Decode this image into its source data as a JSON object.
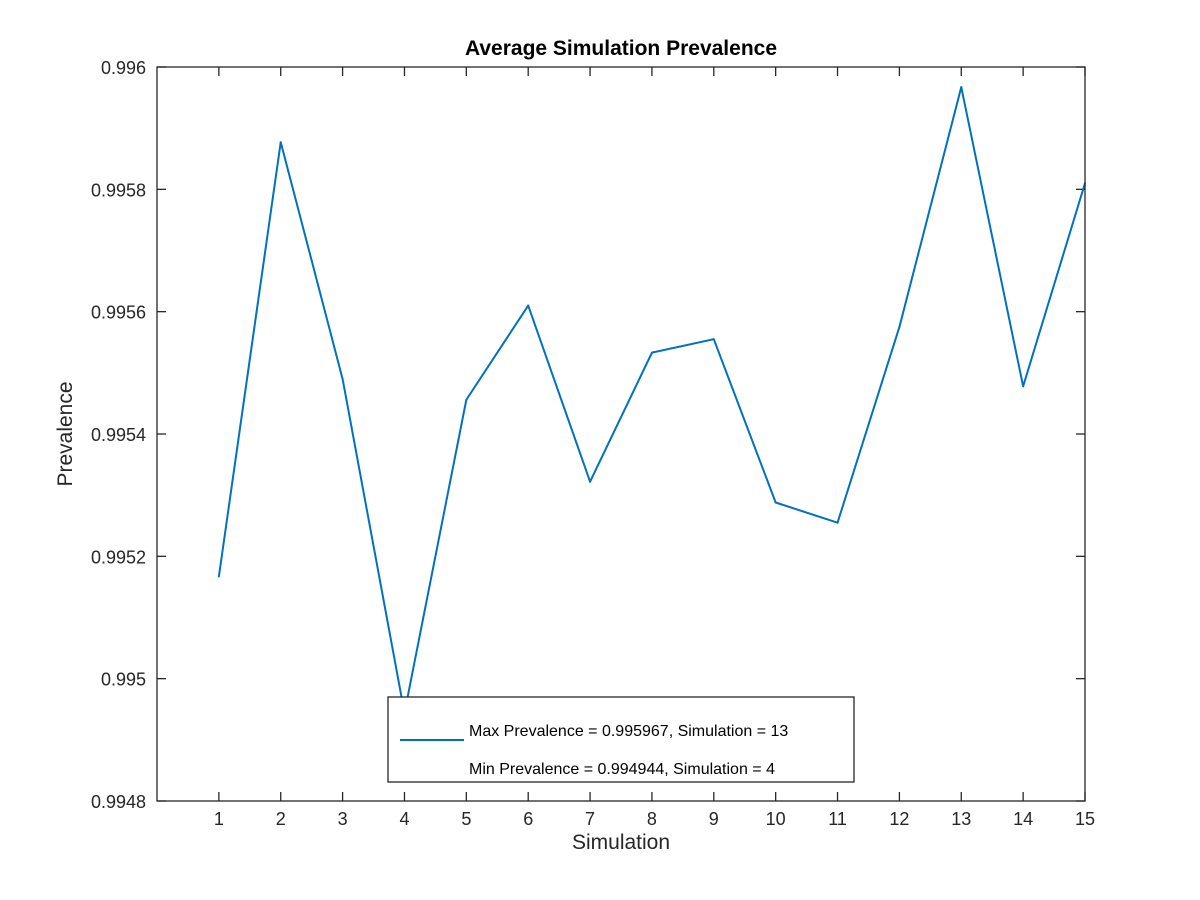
{
  "chart_data": {
    "type": "line",
    "title": "Average Simulation Prevalence",
    "xlabel": "Simulation",
    "ylabel": "Prevalence",
    "xlim": [
      0,
      15
    ],
    "ylim": [
      0.9948,
      0.996
    ],
    "x_ticks": [
      1,
      2,
      3,
      4,
      5,
      6,
      7,
      8,
      9,
      10,
      11,
      12,
      13,
      14,
      15
    ],
    "y_ticks": [
      0.9948,
      0.995,
      0.9952,
      0.9954,
      0.9956,
      0.9958,
      0.996
    ],
    "y_tick_labels": [
      "0.9948",
      "0.995",
      "0.9952",
      "0.9954",
      "0.9956",
      "0.9958",
      "0.996"
    ],
    "grid": false,
    "legend_position": "bottom",
    "series": [
      {
        "color": "#0072bd",
        "x": [
          1,
          2,
          3,
          4,
          5,
          6,
          7,
          8,
          9,
          10,
          11,
          12,
          13,
          14,
          15
        ],
        "values": [
          0.995167,
          0.995877,
          0.99549,
          0.994944,
          0.995456,
          0.99561,
          0.995322,
          0.995533,
          0.995555,
          0.995288,
          0.995255,
          0.995575,
          0.995967,
          0.995478,
          0.99581
        ]
      }
    ],
    "legend": [
      "Max Prevalence = 0.995967, Simulation = 13",
      "Min Prevalence = 0.994944, Simulation = 4"
    ]
  }
}
